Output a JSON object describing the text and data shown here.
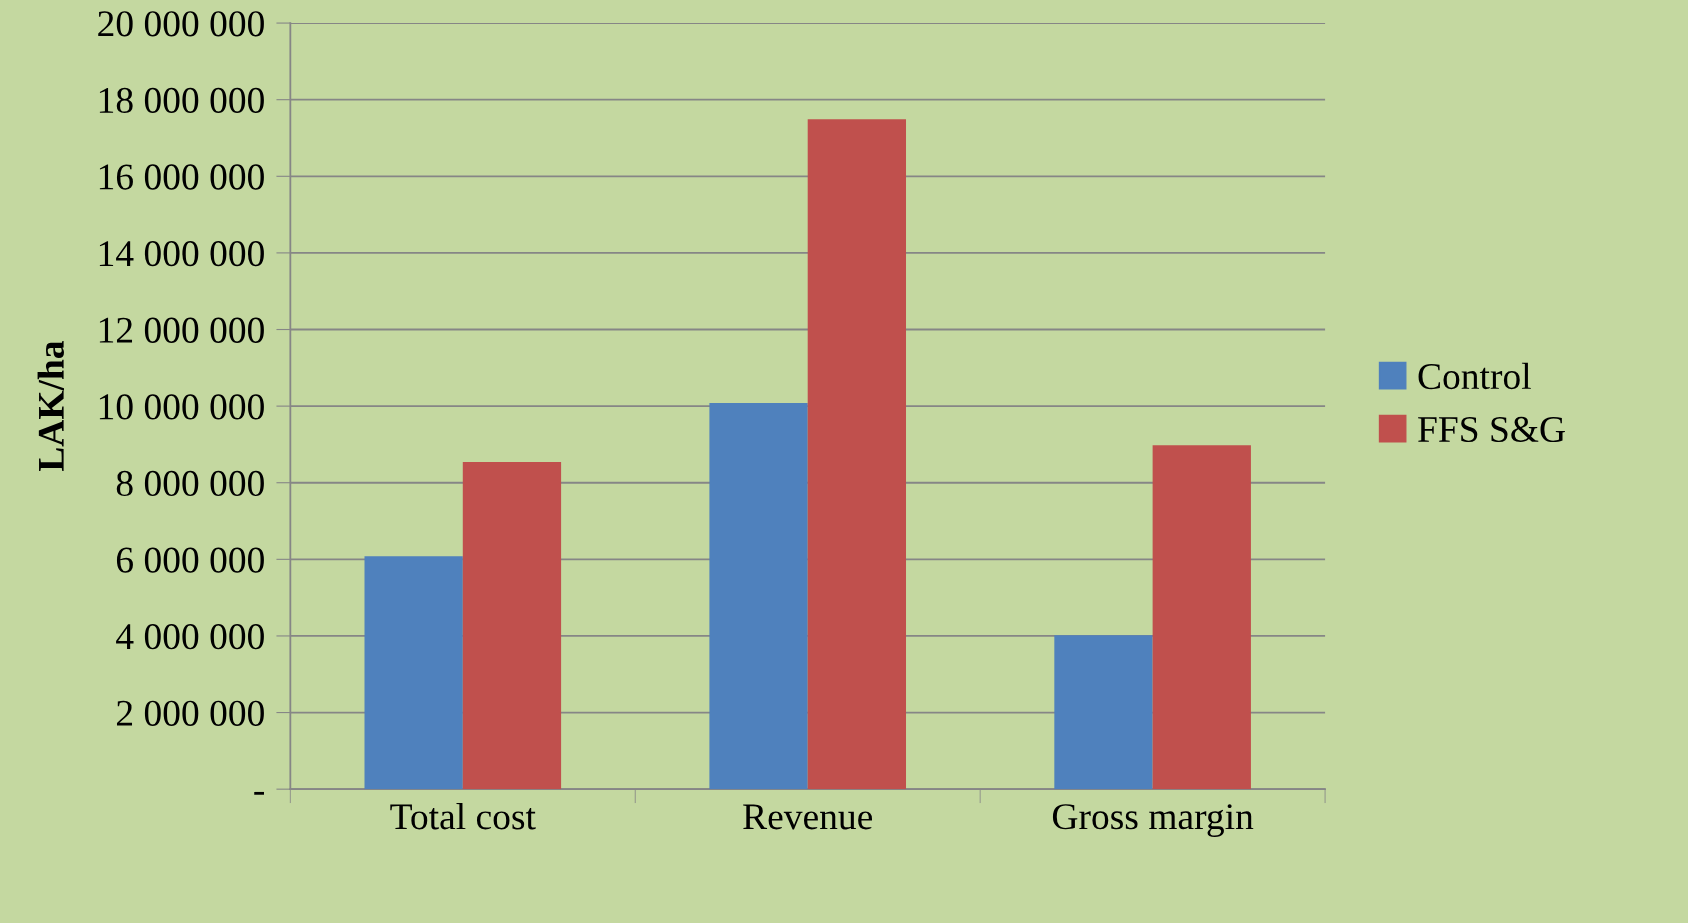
{
  "chart_data": {
    "type": "bar",
    "ylabel": "LAK/ha",
    "categories": [
      "Total cost",
      "Revenue",
      "Gross margin"
    ],
    "series": [
      {
        "name": "Control",
        "color": "#4f81bd",
        "values": [
          6080000,
          10080000,
          4020000
        ]
      },
      {
        "name": "FFS S&G",
        "color": "#c0504d",
        "values": [
          8540000,
          17490000,
          8980000
        ]
      }
    ],
    "ylim": [
      0,
      20000000
    ],
    "yticks": [
      {
        "value": 0,
        "label": "-"
      },
      {
        "value": 2000000,
        "label": "2 000 000"
      },
      {
        "value": 4000000,
        "label": "4 000 000"
      },
      {
        "value": 6000000,
        "label": "6 000 000"
      },
      {
        "value": 8000000,
        "label": "8 000 000"
      },
      {
        "value": 10000000,
        "label": "10 000 000"
      },
      {
        "value": 12000000,
        "label": "12 000 000"
      },
      {
        "value": 14000000,
        "label": "14 000 000"
      },
      {
        "value": 16000000,
        "label": "16 000 000"
      },
      {
        "value": 18000000,
        "label": "18 000 000"
      },
      {
        "value": 20000000,
        "label": "20 000 000"
      }
    ],
    "grid": "y",
    "legend": "right"
  }
}
